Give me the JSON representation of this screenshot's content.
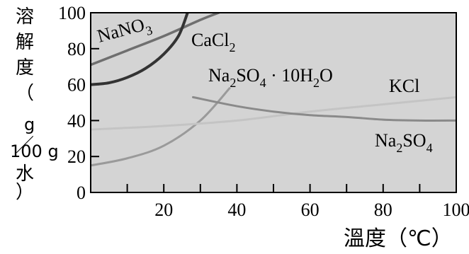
{
  "chart_data": {
    "type": "line",
    "xlabel": "溫度（℃）",
    "ylabel": "溶解度（g／100 g水）",
    "xlim": [
      0,
      100
    ],
    "ylim": [
      0,
      100
    ],
    "x_ticks": [
      "20",
      "40",
      "60",
      "80",
      "100"
    ],
    "y_ticks": [
      "0",
      "20",
      "40",
      "60",
      "80",
      "100"
    ],
    "series": [
      {
        "name": "NaNO3",
        "display": [
          "NaNO",
          "3",
          ""
        ],
        "color": "#6f6f6f",
        "x": [
          0,
          10,
          20,
          30,
          35
        ],
        "y": [
          71,
          79,
          87,
          96,
          100
        ]
      },
      {
        "name": "CaCl2",
        "display": [
          "CaCl",
          "2",
          ""
        ],
        "color": "#333333",
        "x": [
          0,
          5,
          10,
          15,
          20,
          24,
          26.5
        ],
        "y": [
          60,
          61,
          64,
          69,
          77,
          87,
          100
        ]
      },
      {
        "name": "Na2SO4 · 10H2O",
        "display": [
          "Na",
          "2",
          "SO",
          "4",
          " · 10H",
          "2",
          "O"
        ],
        "color": "#9a9a9a",
        "x": [
          0,
          10,
          20,
          30,
          38
        ],
        "y": [
          15,
          19,
          26,
          40,
          58
        ]
      },
      {
        "name": "KCl",
        "display": [
          "KCl"
        ],
        "color": "#c4c4c4",
        "x": [
          0,
          20,
          40,
          60,
          80,
          100
        ],
        "y": [
          35,
          37,
          40,
          45,
          49,
          53
        ]
      },
      {
        "name": "Na2SO4",
        "display": [
          "Na",
          "2",
          "SO",
          "4"
        ],
        "color": "#8a8a8a",
        "x": [
          28,
          40,
          50,
          60,
          70,
          80,
          90,
          100
        ],
        "y": [
          53,
          48,
          45,
          43,
          42,
          40.5,
          40,
          40
        ]
      }
    ]
  }
}
